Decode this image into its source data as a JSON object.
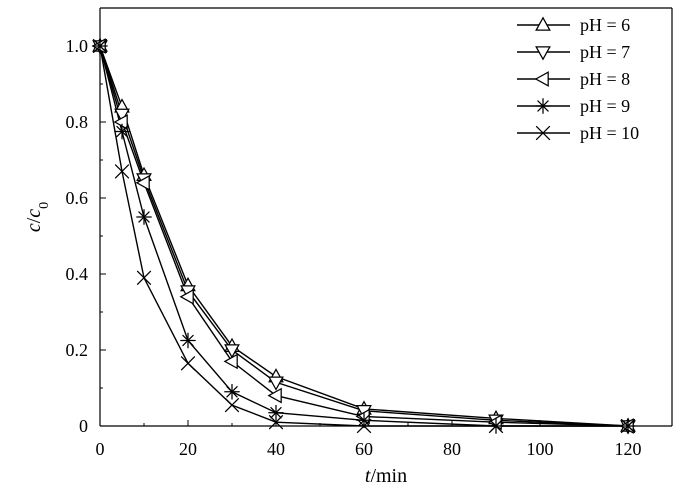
{
  "chart_data": {
    "type": "line",
    "title": "",
    "xlabel": "t/min",
    "ylabel": "c/c0",
    "xlim": [
      0,
      130
    ],
    "ylim": [
      0,
      1.1
    ],
    "xticks": [
      0,
      20,
      40,
      60,
      80,
      100,
      120
    ],
    "yticks": [
      0,
      0.2,
      0.4,
      0.6,
      0.8,
      1.0
    ],
    "xtick_labels": [
      "0",
      "20",
      "40",
      "60",
      "80",
      "100",
      "120"
    ],
    "ytick_labels": [
      "0",
      "0.2",
      "0.4",
      "0.6",
      "0.8",
      "1.0"
    ],
    "legend": {
      "placement": "top-right"
    },
    "grid": false,
    "series": [
      {
        "name": "pH = 6",
        "marker": "triangle-up",
        "color": "#000000",
        "points": [
          {
            "x": 0,
            "y": 1.0
          },
          {
            "x": 5,
            "y": 0.84
          },
          {
            "x": 10,
            "y": 0.66
          },
          {
            "x": 20,
            "y": 0.37
          },
          {
            "x": 30,
            "y": 0.21
          },
          {
            "x": 40,
            "y": 0.13
          },
          {
            "x": 60,
            "y": 0.045
          },
          {
            "x": 90,
            "y": 0.02
          },
          {
            "x": 120,
            "y": 0.0
          }
        ]
      },
      {
        "name": "pH = 7",
        "marker": "triangle-down",
        "color": "#000000",
        "points": [
          {
            "x": 0,
            "y": 1.0
          },
          {
            "x": 5,
            "y": 0.82
          },
          {
            "x": 10,
            "y": 0.65
          },
          {
            "x": 20,
            "y": 0.355
          },
          {
            "x": 30,
            "y": 0.2
          },
          {
            "x": 40,
            "y": 0.115
          },
          {
            "x": 60,
            "y": 0.04
          },
          {
            "x": 90,
            "y": 0.015
          },
          {
            "x": 120,
            "y": 0.0
          }
        ]
      },
      {
        "name": "pH = 8",
        "marker": "triangle-left",
        "color": "#000000",
        "points": [
          {
            "x": 0,
            "y": 1.0
          },
          {
            "x": 5,
            "y": 0.8
          },
          {
            "x": 10,
            "y": 0.64
          },
          {
            "x": 20,
            "y": 0.34
          },
          {
            "x": 30,
            "y": 0.17
          },
          {
            "x": 40,
            "y": 0.08
          },
          {
            "x": 60,
            "y": 0.025
          },
          {
            "x": 90,
            "y": 0.01
          },
          {
            "x": 120,
            "y": 0.0
          }
        ]
      },
      {
        "name": "pH = 9",
        "marker": "asterisk",
        "color": "#000000",
        "points": [
          {
            "x": 0,
            "y": 1.0
          },
          {
            "x": 5,
            "y": 0.775
          },
          {
            "x": 10,
            "y": 0.55
          },
          {
            "x": 20,
            "y": 0.225
          },
          {
            "x": 30,
            "y": 0.09
          },
          {
            "x": 40,
            "y": 0.035
          },
          {
            "x": 60,
            "y": 0.015
          },
          {
            "x": 90,
            "y": 0.0
          },
          {
            "x": 120,
            "y": 0.0
          }
        ]
      },
      {
        "name": "pH = 10",
        "marker": "x",
        "color": "#000000",
        "points": [
          {
            "x": 0,
            "y": 1.0
          },
          {
            "x": 5,
            "y": 0.67
          },
          {
            "x": 10,
            "y": 0.39
          },
          {
            "x": 20,
            "y": 0.165
          },
          {
            "x": 30,
            "y": 0.055
          },
          {
            "x": 40,
            "y": 0.01
          },
          {
            "x": 60,
            "y": 0.0
          },
          {
            "x": 90,
            "y": 0.0
          },
          {
            "x": 120,
            "y": 0.0
          }
        ]
      }
    ]
  }
}
